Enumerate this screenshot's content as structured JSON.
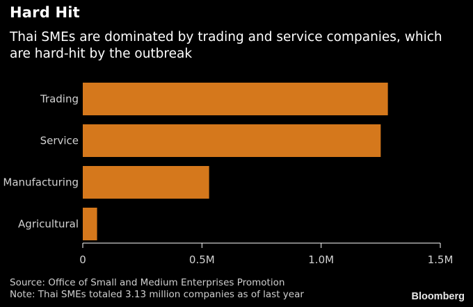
{
  "header": {
    "title": "Hard Hit",
    "subtitle": "Thai SMEs are dominated by trading and service companies, which are hard-hit by the outbreak"
  },
  "footer": {
    "source": "Source: Office of Small and Medium Enterprises Promotion",
    "note": "Note: Thai SMEs totaled 3.13 million companies as of last year",
    "brand": "Bloomberg"
  },
  "colors": {
    "bar": "#d5781c",
    "background": "#000000",
    "axis": "#ffffff"
  },
  "chart_data": {
    "type": "bar",
    "orientation": "horizontal",
    "title": "Hard Hit",
    "subtitle": "Thai SMEs are dominated by trading and service companies, which are hard-hit by the outbreak",
    "categories": [
      "Trading",
      "Service",
      "Manufacturing",
      "Agricultural"
    ],
    "values": [
      1280000,
      1250000,
      530000,
      60000
    ],
    "xlim": [
      0,
      1500000
    ],
    "ticks": [
      0,
      500000,
      1000000,
      1500000
    ],
    "tick_labels": [
      "0",
      "0.5M",
      "1.0M",
      "1.5M"
    ],
    "xlabel": "",
    "ylabel": "",
    "grid": false
  }
}
